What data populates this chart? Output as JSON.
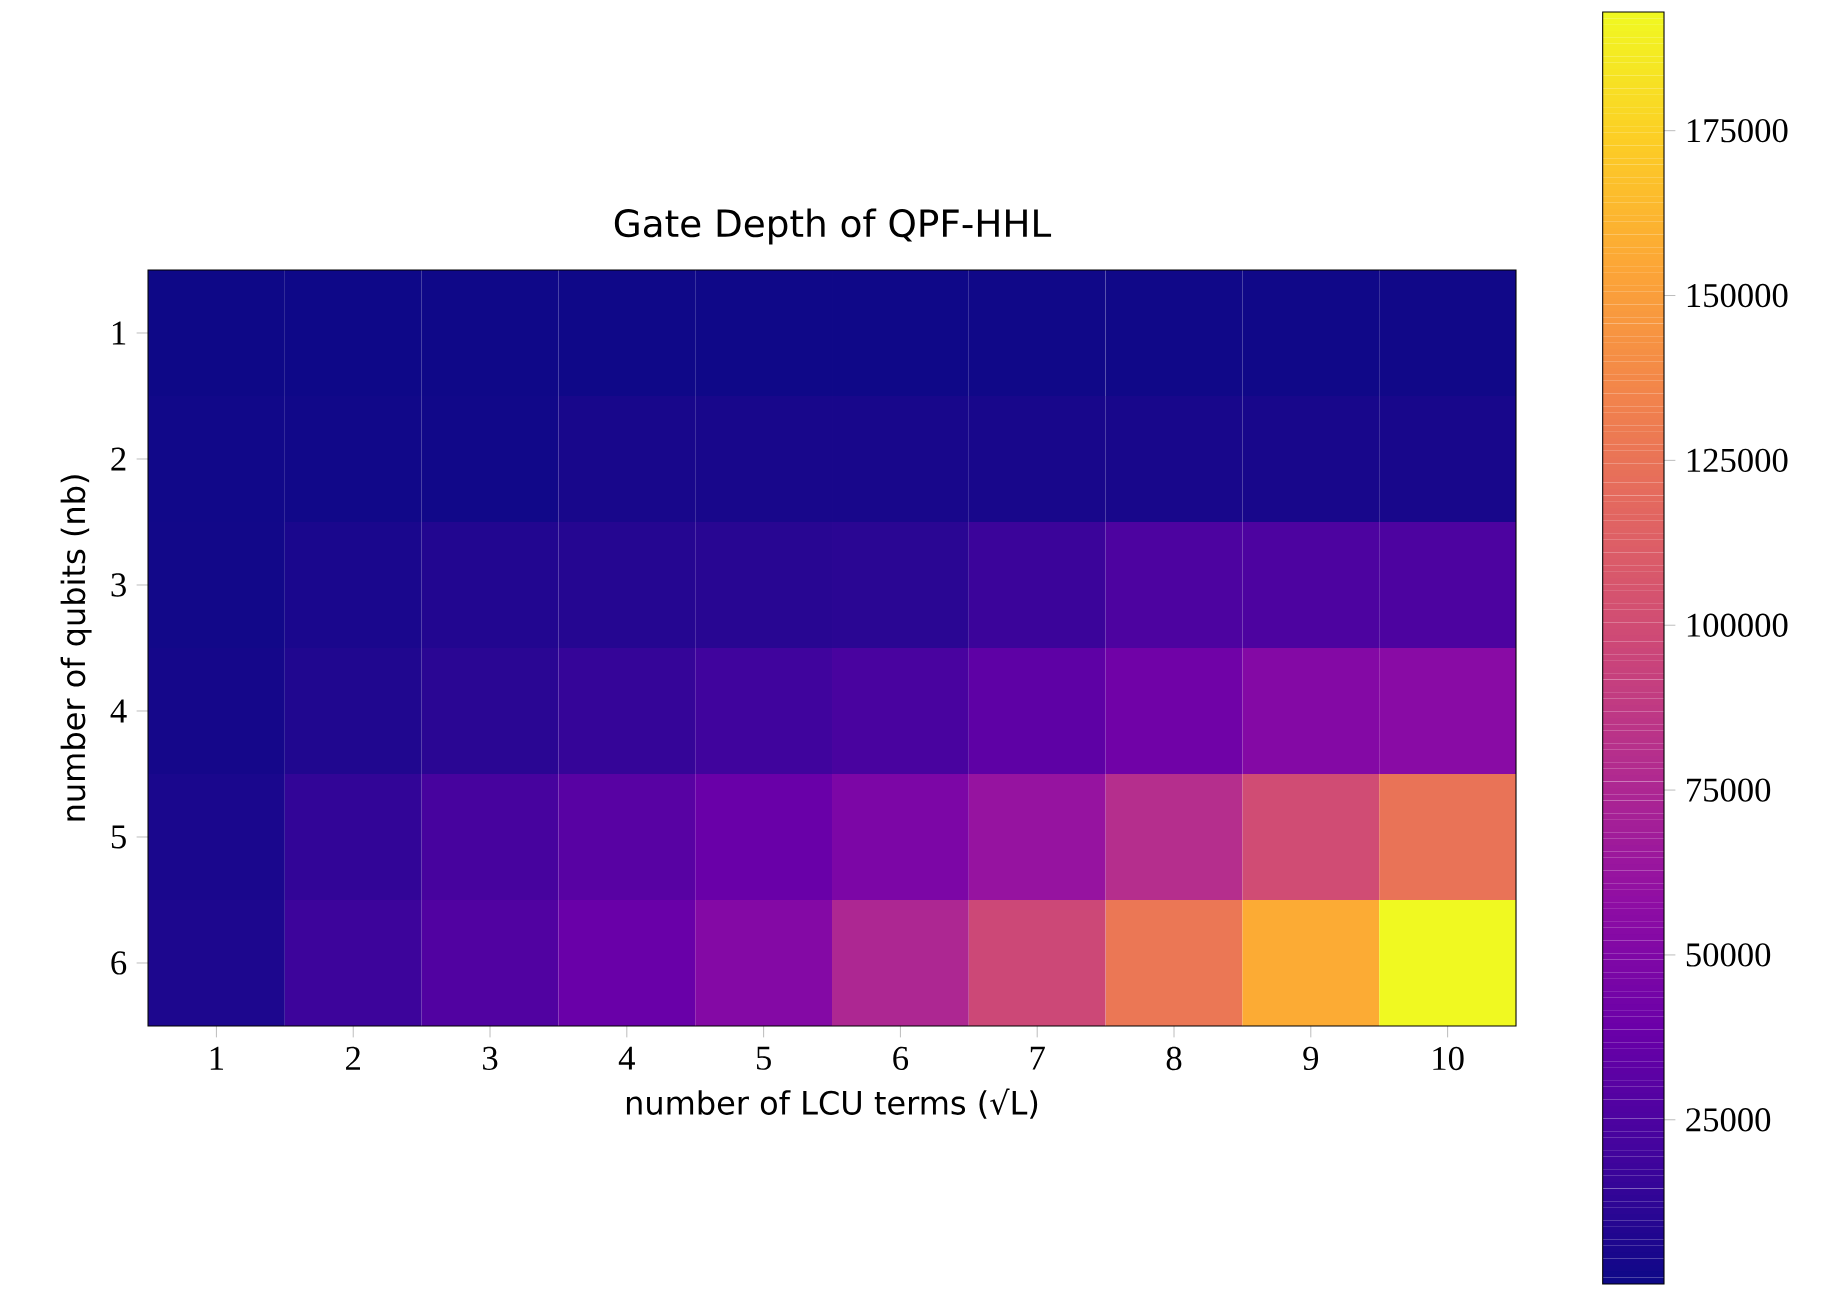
{
  "chart_data": {
    "type": "heatmap",
    "title": "Gate Depth of QPF-HHL",
    "xlabel": "number of LCU terms (√L)",
    "ylabel": "number of qubits (nb)",
    "categories": [
      "1",
      "2",
      "3",
      "4",
      "5",
      "6",
      "7",
      "8",
      "9",
      "10"
    ],
    "y_categories": [
      "1",
      "2",
      "3",
      "4",
      "5",
      "6"
    ],
    "cells": [
      [
        500,
        600,
        700,
        800,
        900,
        1000,
        1100,
        1200,
        1300,
        1400
      ],
      [
        1500,
        1600,
        1700,
        4000,
        4000,
        4000,
        4000,
        4000,
        4000,
        4000
      ],
      [
        2000,
        5000,
        8000,
        9000,
        10000,
        11000,
        17000,
        25000,
        25000,
        25000
      ],
      [
        3000,
        7000,
        11000,
        15000,
        19000,
        23000,
        33000,
        42000,
        52000,
        55000
      ],
      [
        5000,
        14000,
        22000,
        30000,
        38000,
        48000,
        62000,
        80000,
        100000,
        125000
      ],
      [
        6000,
        18000,
        27000,
        38000,
        52000,
        75000,
        97000,
        127000,
        157000,
        193000
      ]
    ],
    "clim": [
      100,
      193000
    ],
    "cticks": [
      25000,
      50000,
      75000,
      100000,
      125000,
      150000,
      175000
    ]
  }
}
